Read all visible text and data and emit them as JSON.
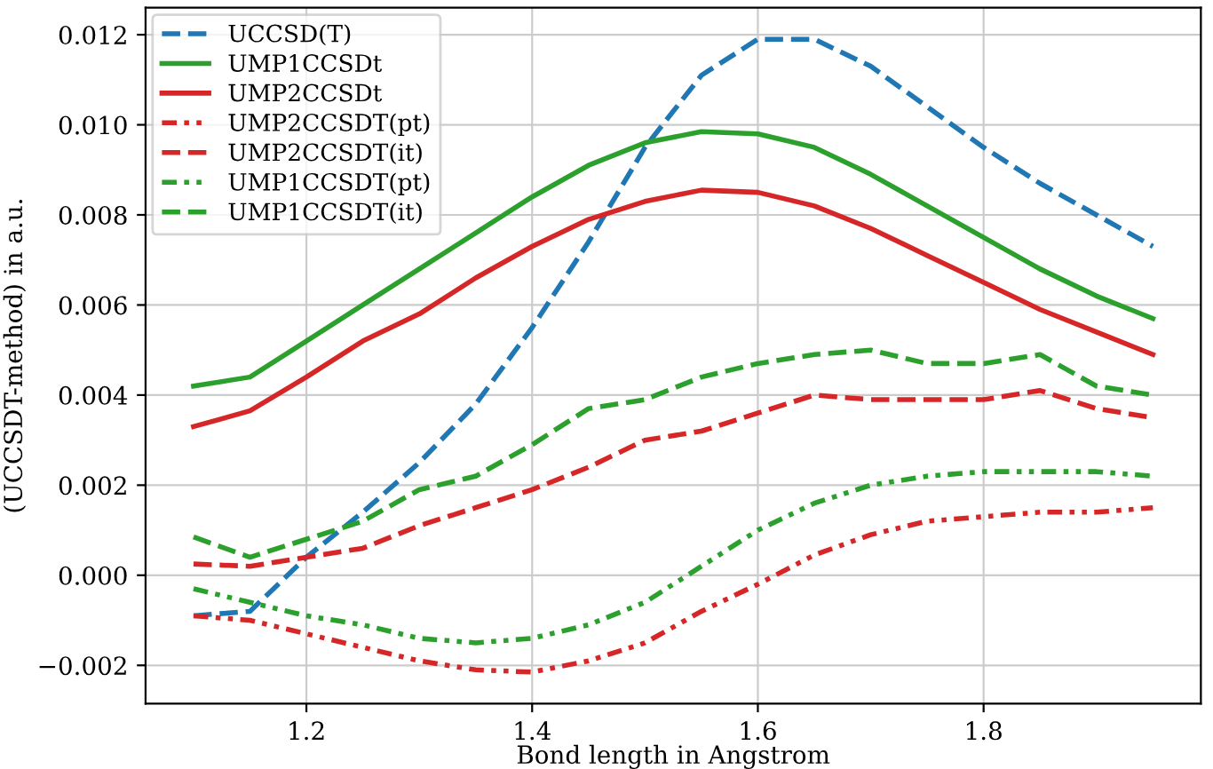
{
  "chart_data": {
    "type": "line",
    "xlabel": "Bond length in Angstrom",
    "ylabel": "(UCCSDT-method) in a.u.",
    "x": [
      1.1,
      1.15,
      1.2,
      1.25,
      1.3,
      1.35,
      1.4,
      1.45,
      1.5,
      1.55,
      1.6,
      1.65,
      1.7,
      1.75,
      1.8,
      1.85,
      1.9,
      1.95
    ],
    "series": [
      {
        "name": "UCCSD(T)",
        "color": "#1f77b4",
        "line_style": "dashed",
        "values": [
          -0.0009,
          -0.0008,
          0.0004,
          0.0014,
          0.0025,
          0.0038,
          0.0055,
          0.0074,
          0.0095,
          0.0111,
          0.0119,
          0.0119,
          0.0113,
          0.0104,
          0.0095,
          0.0087,
          0.008,
          0.0073
        ]
      },
      {
        "name": "UMP1CCSDt",
        "color": "#2ca02c",
        "line_style": "solid",
        "values": [
          0.0042,
          0.0044,
          0.0052,
          0.006,
          0.0068,
          0.0076,
          0.0084,
          0.0091,
          0.0096,
          0.00985,
          0.0098,
          0.0095,
          0.0089,
          0.0082,
          0.0075,
          0.0068,
          0.0062,
          0.0057
        ]
      },
      {
        "name": "UMP2CCSDt",
        "color": "#d62728",
        "line_style": "solid",
        "values": [
          0.0033,
          0.00365,
          0.0044,
          0.0052,
          0.0058,
          0.0066,
          0.0073,
          0.0079,
          0.0083,
          0.00855,
          0.0085,
          0.0082,
          0.0077,
          0.0071,
          0.0065,
          0.0059,
          0.0054,
          0.0049
        ]
      },
      {
        "name": "UMP2CCSDT(pt)",
        "color": "#d62728",
        "line_style": "dashdotdot",
        "values": [
          -0.0009,
          -0.001,
          -0.0013,
          -0.0016,
          -0.0019,
          -0.0021,
          -0.00215,
          -0.0019,
          -0.0015,
          -0.0008,
          -0.0002,
          0.00045,
          0.0009,
          0.0012,
          0.0013,
          0.0014,
          0.0014,
          0.0015
        ]
      },
      {
        "name": "UMP2CCSDT(it)",
        "color": "#d62728",
        "line_style": "dashed",
        "values": [
          0.00025,
          0.0002,
          0.0004,
          0.0006,
          0.0011,
          0.0015,
          0.0019,
          0.0024,
          0.003,
          0.0032,
          0.0036,
          0.004,
          0.0039,
          0.0039,
          0.0039,
          0.0041,
          0.0037,
          0.0035
        ]
      },
      {
        "name": "UMP1CCSDT(pt)",
        "color": "#2ca02c",
        "line_style": "dashdotdot",
        "values": [
          -0.0003,
          -0.0006,
          -0.0009,
          -0.0011,
          -0.0014,
          -0.0015,
          -0.0014,
          -0.0011,
          -0.0006,
          0.0002,
          0.001,
          0.0016,
          0.002,
          0.0022,
          0.0023,
          0.0023,
          0.0023,
          0.0022
        ]
      },
      {
        "name": "UMP1CCSDT(it)",
        "color": "#2ca02c",
        "line_style": "dashed",
        "values": [
          0.00085,
          0.0004,
          0.0008,
          0.0012,
          0.0019,
          0.0022,
          0.0029,
          0.0037,
          0.0039,
          0.0044,
          0.0047,
          0.0049,
          0.005,
          0.0047,
          0.0047,
          0.0049,
          0.0042,
          0.004
        ]
      }
    ],
    "xlim": [
      1.0575,
      1.9925
    ],
    "xticks": [
      {
        "value": 1.2,
        "label": "1.2"
      },
      {
        "value": 1.4,
        "label": "1.4"
      },
      {
        "value": 1.6,
        "label": "1.6"
      },
      {
        "value": 1.8,
        "label": "1.8"
      }
    ],
    "ylim": [
      -0.00285,
      0.0126
    ],
    "yticks": [
      {
        "value": -0.002,
        "label": "−0.002"
      },
      {
        "value": 0,
        "label": "0.000"
      },
      {
        "value": 0.002,
        "label": "0.002"
      },
      {
        "value": 0.004,
        "label": "0.004"
      },
      {
        "value": 0.006,
        "label": "0.006"
      },
      {
        "value": 0.008,
        "label": "0.008"
      },
      {
        "value": 0.01,
        "label": "0.010"
      },
      {
        "value": 0.012,
        "label": "0.012"
      }
    ],
    "grid": true,
    "legend": "top left"
  }
}
